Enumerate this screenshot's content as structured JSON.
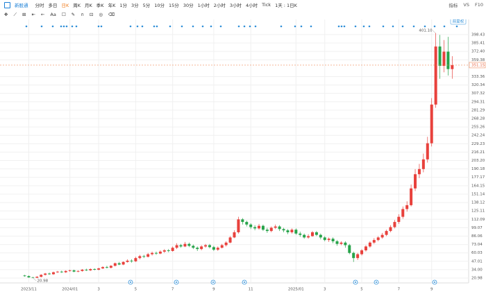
{
  "toolbar": {
    "brand": "新股通",
    "periods": [
      "分时",
      "多日",
      "日K",
      "周K",
      "月K",
      "季K",
      "年K",
      "1分",
      "3分",
      "5分",
      "10分",
      "15分",
      "30分",
      "1小时",
      "2小时",
      "3小时",
      "4小时",
      "Tick",
      "1天 : 1日K"
    ],
    "active": "日K",
    "right": [
      "指标",
      "VS",
      "F10"
    ],
    "tools": [
      "Aa"
    ]
  },
  "chart_data": {
    "type": "candlestick",
    "adjust_label": "前复权",
    "up_color": "#e8413c",
    "down_color": "#27a34a",
    "open": [
      25,
      24,
      22,
      21.5,
      23,
      26,
      28,
      27,
      30,
      31,
      30,
      32,
      33,
      31,
      32,
      34,
      33,
      35,
      34,
      36,
      38,
      37,
      40,
      44,
      42,
      46,
      48,
      47,
      52,
      55,
      54,
      58,
      60,
      59,
      62,
      64,
      63,
      68,
      72,
      70,
      74,
      71,
      68,
      66,
      70,
      72,
      69,
      65,
      68,
      72,
      76,
      84,
      92,
      112,
      108,
      104,
      100,
      98,
      102,
      96,
      94,
      99,
      101,
      97,
      95,
      92,
      96,
      90,
      88,
      84,
      86,
      92,
      88,
      84,
      80,
      82,
      78,
      74,
      76,
      72,
      60,
      52,
      58,
      64,
      70,
      76,
      80,
      84,
      88,
      94,
      100,
      108,
      116,
      128,
      134,
      160,
      182,
      190,
      205,
      230,
      290,
      380,
      350,
      372,
      345
    ],
    "high": [
      26,
      25,
      23,
      24,
      27,
      29,
      29.5,
      31,
      32,
      32.5,
      33,
      34,
      34,
      33,
      35,
      35.5,
      36,
      36,
      37,
      39.5,
      40,
      41,
      45,
      46,
      47,
      50,
      50,
      54,
      57,
      57,
      60,
      62,
      62,
      64,
      66,
      66,
      70,
      75,
      74,
      77,
      76,
      73,
      70,
      72,
      74,
      74,
      71,
      70,
      74,
      78,
      86,
      95,
      116,
      114,
      110,
      106,
      103,
      105,
      104,
      99,
      101,
      104,
      103,
      99,
      97,
      98,
      98,
      93,
      90,
      89,
      94,
      94,
      90,
      86,
      84,
      84,
      80,
      78,
      78,
      74,
      62,
      60,
      66,
      72,
      78,
      83,
      86,
      91,
      96,
      103,
      111,
      120,
      132,
      140,
      166,
      190,
      198,
      214,
      240,
      300,
      401.1,
      398,
      390,
      395,
      365
    ],
    "low": [
      23,
      21.5,
      20.98,
      21,
      22,
      25,
      26,
      26,
      29,
      29,
      29,
      31,
      30,
      30,
      31,
      32,
      32,
      33,
      33,
      35,
      36,
      36,
      39,
      41,
      41,
      45,
      45,
      46,
      50,
      52,
      53,
      56,
      57,
      58,
      60,
      61,
      62,
      66,
      68,
      69,
      69,
      66,
      63,
      64,
      68,
      67,
      63,
      63,
      67,
      70,
      75,
      83,
      90,
      104,
      101,
      97,
      95,
      96,
      94,
      91,
      92,
      97,
      94,
      92,
      89,
      90,
      88,
      85,
      82,
      82,
      85,
      86,
      81,
      78,
      77,
      75,
      71,
      72,
      68,
      58,
      46,
      49,
      56,
      62,
      68,
      74,
      78,
      82,
      86,
      92,
      98,
      105,
      113,
      124,
      132,
      156,
      176,
      185,
      200,
      225,
      285,
      330,
      340,
      335,
      330
    ],
    "close": [
      24,
      22,
      21.5,
      23,
      26,
      28,
      27,
      30,
      31,
      30,
      32,
      33,
      31,
      32,
      34,
      33,
      35,
      34,
      36,
      38,
      37,
      40,
      44,
      42,
      46,
      48,
      47,
      52,
      55,
      54,
      58,
      60,
      59,
      62,
      64,
      63,
      68,
      72,
      70,
      74,
      71,
      68,
      66,
      70,
      72,
      69,
      65,
      68,
      72,
      76,
      84,
      92,
      112,
      108,
      104,
      100,
      98,
      102,
      96,
      94,
      99,
      101,
      97,
      95,
      92,
      96,
      90,
      88,
      84,
      86,
      92,
      88,
      84,
      80,
      82,
      78,
      74,
      76,
      72,
      60,
      52,
      58,
      64,
      70,
      76,
      80,
      84,
      88,
      94,
      100,
      108,
      116,
      128,
      134,
      160,
      182,
      190,
      205,
      230,
      290,
      380,
      350,
      372,
      345,
      351.15
    ],
    "annotations": [
      {
        "value": 401.1,
        "label": "401.10"
      },
      {
        "value": 20.98,
        "label": "20.98"
      }
    ],
    "ylim": [
      13.5,
      417.7
    ],
    "yticks": [
      20.98,
      {
        "value": 34,
        "label": "34.00"
      },
      47.01,
      60.03,
      73.04,
      86.06,
      99.07,
      112.09,
      125.11,
      138.12,
      151.14,
      164.15,
      177.17,
      190.18,
      {
        "value": 203.2,
        "label": "203.20"
      },
      216.21,
      229.23,
      242.24,
      255.26,
      268.28,
      281.29,
      294.31,
      307.32,
      320.34,
      333.36,
      359.38,
      {
        "value": 372.4,
        "label": "372.40"
      },
      385.41,
      398.43
    ],
    "xlim": [
      -6,
      108
    ],
    "xticks": [
      {
        "value": 1,
        "label": "2023/11"
      },
      {
        "value": 11,
        "label": "2024/01"
      },
      {
        "value": 18,
        "label": "3"
      },
      {
        "value": 27,
        "label": "5"
      },
      {
        "value": 36,
        "label": "7"
      },
      {
        "value": 46,
        "label": "9"
      },
      {
        "value": 55,
        "label": "11"
      },
      {
        "value": 66,
        "label": "2025/01"
      },
      {
        "value": 73,
        "label": "3"
      },
      {
        "value": 82,
        "label": "5"
      },
      {
        "value": 91,
        "label": "7"
      },
      {
        "value": 99,
        "label": "9"
      }
    ],
    "grid": true
  }
}
